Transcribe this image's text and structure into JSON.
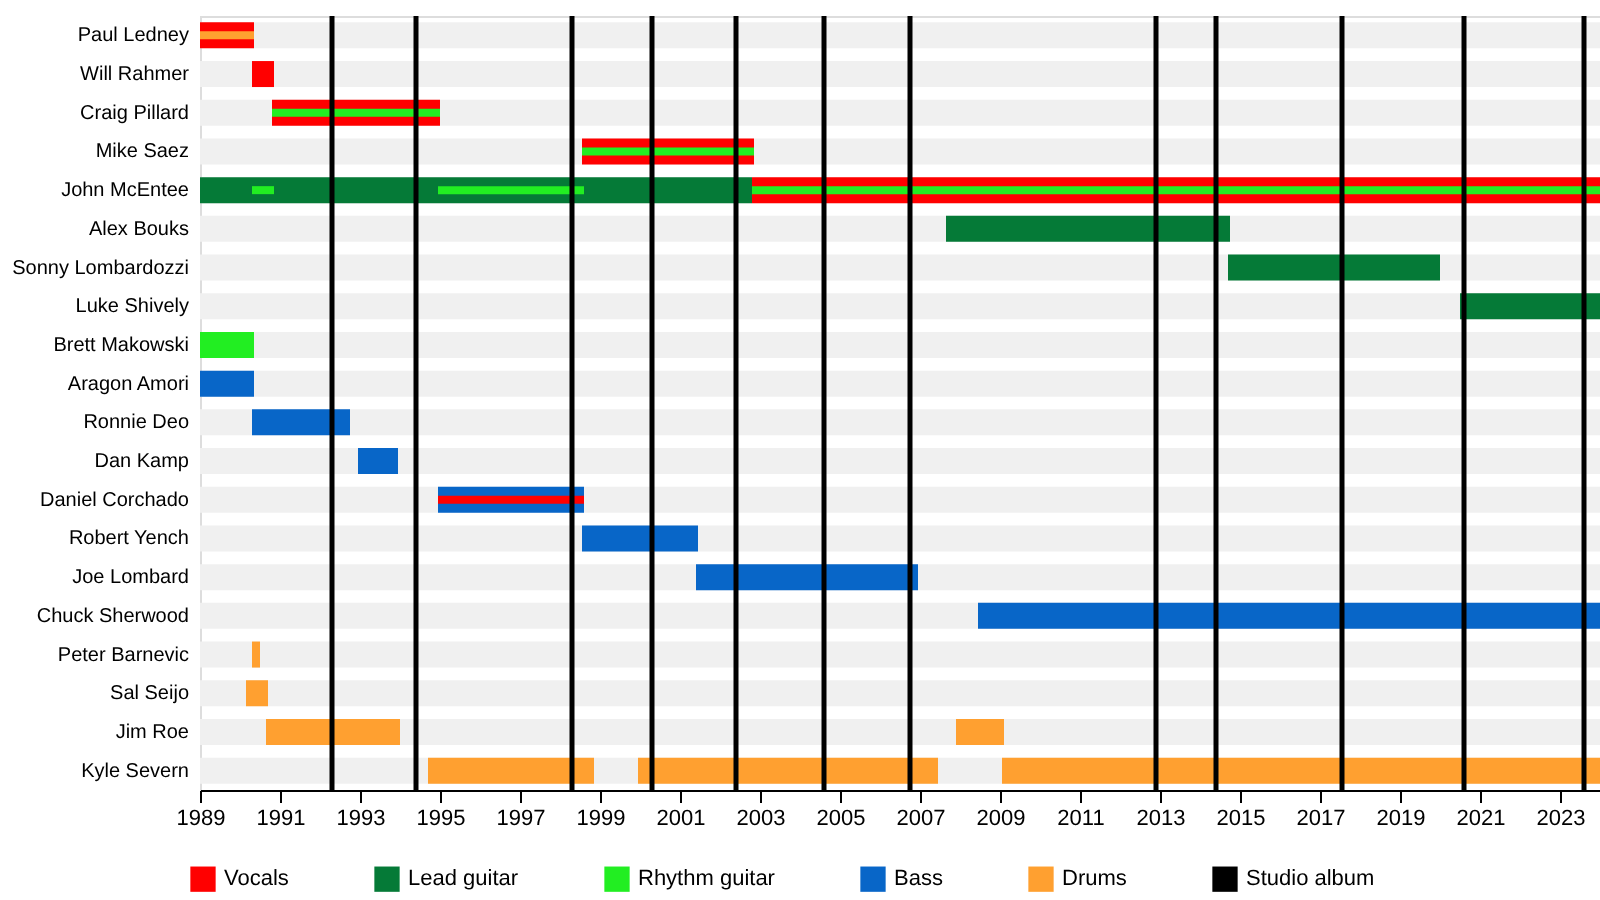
{
  "chart_data": {
    "type": "bar",
    "orientation": "horizontal",
    "legend": "bottom",
    "categories": [
      "Paul Ledney",
      "Will Rahmer",
      "Craig Pillard",
      "Mike Saez",
      "John McEntee",
      "Alex Bouks",
      "Sonny Lombardozzi",
      "Luke Shively",
      "Brett Makowski",
      "Aragon Amori",
      "Ronnie Deo",
      "Dan Kamp",
      "Daniel Corchado",
      "Robert Yench",
      "Joe Lombard",
      "Chuck Sherwood",
      "Peter Barnevic",
      "Sal Seijo",
      "Jim Roe",
      "Kyle Severn"
    ],
    "xlim": [
      1989,
      2024
    ],
    "xticks": [
      1989,
      1991,
      1993,
      1995,
      1997,
      1999,
      2001,
      2003,
      2005,
      2007,
      2009,
      2011,
      2013,
      2015,
      2017,
      2019,
      2021,
      2023
    ],
    "series": [
      {
        "name": "Vocals",
        "color": "#ff0000",
        "base": [
          1989,
          1990.3,
          1990.8,
          1998.55,
          2002.8,
          null,
          null,
          null,
          null,
          null,
          null,
          null,
          null,
          null,
          null,
          null,
          null,
          null,
          null,
          null
        ],
        "values": [
          1.35,
          0.55,
          4.2,
          4.3,
          21.2,
          null,
          null,
          null,
          null,
          null,
          null,
          null,
          null,
          null,
          null,
          null,
          null,
          null,
          null,
          null
        ]
      },
      {
        "name": "Lead guitar",
        "color": "#057a37",
        "base": [
          null,
          null,
          null,
          null,
          1989,
          2007.65,
          2014.7,
          2020.5,
          null,
          null,
          null,
          null,
          null,
          null,
          null,
          null,
          null,
          null,
          null,
          null
        ],
        "values": [
          null,
          null,
          null,
          null,
          13.8,
          7.1,
          5.3,
          3.5,
          null,
          null,
          null,
          null,
          null,
          null,
          null,
          null,
          null,
          null,
          null,
          null
        ]
      },
      {
        "name": "Rhythm guitar",
        "color": "#22ee22",
        "base": [
          null,
          null,
          1990.8,
          1998.55,
          1990.3,
          null,
          null,
          null,
          1989,
          null,
          null,
          null,
          null,
          null,
          null,
          null,
          null,
          null,
          null,
          null
        ],
        "values": [
          null,
          null,
          4.2,
          4.3,
          0.55,
          null,
          null,
          null,
          1.35,
          null,
          null,
          null,
          null,
          null,
          null,
          null,
          null,
          null,
          null,
          null
        ]
      },
      {
        "color": "#22ee22",
        "base": [
          null,
          null,
          null,
          null,
          1994.95,
          null,
          null,
          null,
          null,
          null,
          null,
          null,
          null,
          null,
          null,
          null,
          null,
          null,
          null,
          null
        ],
        "values": [
          null,
          null,
          null,
          null,
          3.65,
          null,
          null,
          null,
          null,
          null,
          null,
          null,
          null,
          null,
          null,
          null,
          null,
          null,
          null,
          null
        ]
      },
      {
        "color": "#22ee22",
        "base": [
          null,
          null,
          null,
          null,
          2002.8,
          null,
          null,
          null,
          null,
          null,
          null,
          null,
          null,
          null,
          null,
          null,
          null,
          null,
          null,
          null
        ],
        "values": [
          null,
          null,
          null,
          null,
          21.2,
          null,
          null,
          null,
          null,
          null,
          null,
          null,
          null,
          null,
          null,
          null,
          null,
          null,
          null,
          null
        ]
      },
      {
        "name": "Bass",
        "color": "#0866c8",
        "base": [
          null,
          null,
          null,
          null,
          null,
          null,
          null,
          null,
          null,
          1989,
          1990.3,
          1992.95,
          1994.95,
          1998.55,
          2001.4,
          2008.45,
          null,
          null,
          null,
          null
        ],
        "values": [
          null,
          null,
          null,
          null,
          null,
          null,
          null,
          null,
          null,
          1.35,
          2.45,
          1.0,
          3.65,
          2.9,
          5.55,
          15.55,
          null,
          null,
          null,
          null
        ]
      },
      {
        "color": "#ff0000",
        "base": [
          null,
          null,
          null,
          null,
          null,
          null,
          null,
          null,
          null,
          null,
          null,
          null,
          1994.95,
          null,
          null,
          null,
          null,
          null,
          null,
          null
        ],
        "values": [
          null,
          null,
          null,
          null,
          null,
          null,
          null,
          null,
          null,
          null,
          null,
          null,
          3.65,
          null,
          null,
          null,
          null,
          null,
          null,
          null
        ]
      },
      {
        "name": "Drums",
        "color": "#ffa030",
        "base": [
          1989,
          null,
          null,
          null,
          null,
          null,
          null,
          null,
          null,
          null,
          null,
          null,
          null,
          null,
          null,
          null,
          1990.3,
          1990.15,
          1990.65,
          1994.7
        ],
        "values": [
          1.35,
          null,
          null,
          null,
          null,
          null,
          null,
          null,
          null,
          null,
          null,
          null,
          null,
          null,
          null,
          null,
          0.2,
          0.55,
          3.35,
          4.15
        ]
      },
      {
        "color": "#ffa030",
        "base": [
          null,
          null,
          null,
          null,
          null,
          null,
          null,
          null,
          null,
          null,
          null,
          null,
          null,
          null,
          null,
          null,
          null,
          null,
          2007.9,
          1999.95
        ],
        "values": [
          null,
          null,
          null,
          null,
          null,
          null,
          null,
          null,
          null,
          null,
          null,
          null,
          null,
          null,
          null,
          null,
          null,
          null,
          1.2,
          7.5
        ]
      },
      {
        "color": "#ffa030",
        "base": [
          null,
          null,
          null,
          null,
          null,
          null,
          null,
          null,
          null,
          null,
          null,
          null,
          null,
          null,
          null,
          null,
          null,
          null,
          null,
          2009.05
        ],
        "values": [
          null,
          null,
          null,
          null,
          null,
          null,
          null,
          null,
          null,
          null,
          null,
          null,
          null,
          null,
          null,
          null,
          null,
          null,
          null,
          14.95
        ]
      }
    ],
    "ref_lines": [
      {
        "axis": "x",
        "value": 1992.3,
        "label": "Studio album",
        "color": "#000000"
      },
      {
        "axis": "x",
        "value": 1994.4,
        "color": "#000000"
      },
      {
        "axis": "x",
        "value": 1998.3,
        "color": "#000000"
      },
      {
        "axis": "x",
        "value": 2000.3,
        "color": "#000000"
      },
      {
        "axis": "x",
        "value": 2002.4,
        "color": "#000000"
      },
      {
        "axis": "x",
        "value": 2004.6,
        "color": "#000000"
      },
      {
        "axis": "x",
        "value": 2006.75,
        "color": "#000000"
      },
      {
        "axis": "x",
        "value": 2012.9,
        "color": "#000000"
      },
      {
        "axis": "x",
        "value": 2014.4,
        "color": "#000000"
      },
      {
        "axis": "x",
        "value": 2017.55,
        "color": "#000000"
      },
      {
        "axis": "x",
        "value": 2020.6,
        "color": "#000000"
      },
      {
        "axis": "x",
        "value": 2023.6,
        "color": "#000000"
      }
    ]
  }
}
